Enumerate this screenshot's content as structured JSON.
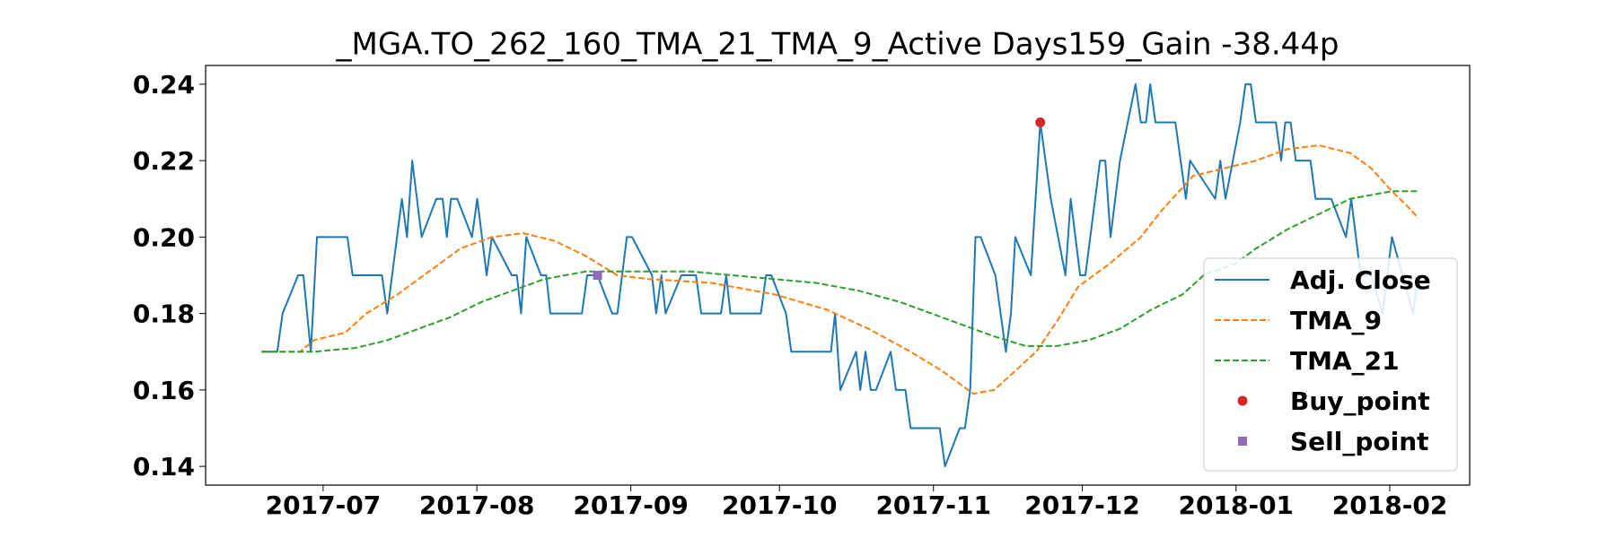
{
  "chart_data": {
    "type": "line",
    "title": "_MGA.TO_262_160_TMA_21_TMA_9_Active Days159_Gain -38.44p",
    "xlim": [
      2017.431,
      2018.129
    ],
    "xticks": [
      {
        "value": 2017.4959,
        "label": "2017-07"
      },
      {
        "value": 2017.5808,
        "label": "2017-08"
      },
      {
        "value": 2017.6658,
        "label": "2017-09"
      },
      {
        "value": 2017.7479,
        "label": "2017-10"
      },
      {
        "value": 2017.8329,
        "label": "2017-11"
      },
      {
        "value": 2017.9151,
        "label": "2017-12"
      },
      {
        "value": 2018.0,
        "label": "2018-01"
      },
      {
        "value": 2018.0849,
        "label": "2018-02"
      }
    ],
    "ylim": [
      0.1351,
      0.2449
    ],
    "yticks": [
      0.14,
      0.16,
      0.18,
      {
        "value": 0.2,
        "label": "0.20"
      },
      0.22,
      0.24
    ],
    "legend": "lower right",
    "series": [
      {
        "name": "Adj. Close",
        "type": "line",
        "color": "#1f77b4",
        "dash": false,
        "x": [
          2017.4619,
          2017.4706,
          2017.4735,
          2017.4821,
          2017.485,
          2017.4891,
          2017.4925,
          2017.5093,
          2017.5122,
          2017.5284,
          2017.5313,
          2017.5394,
          2017.5422,
          2017.5451,
          2017.5503,
          2017.5584,
          2017.5619,
          2017.5642,
          2017.5665,
          2017.57,
          2017.5781,
          2017.581,
          2017.5862,
          2017.5891,
          2017.6,
          2017.6029,
          2017.6052,
          2017.6081,
          2017.6162,
          2017.6191,
          2017.6214,
          2017.6388,
          2017.6417,
          2017.6474,
          2017.6555,
          2017.6584,
          2017.6636,
          2017.6665,
          2017.6775,
          2017.6798,
          2017.6827,
          2017.685,
          2017.6937,
          2017.7018,
          2017.7047,
          2017.7156,
          2017.7185,
          2017.7208,
          2017.7376,
          2017.7405,
          2017.7434,
          2017.7515,
          2017.7544,
          2017.7763,
          2017.7786,
          2017.7815,
          2017.7902,
          2017.7925,
          2017.7954,
          2017.7983,
          2017.8012,
          2017.8093,
          2017.8122,
          2017.8174,
          2017.8203,
          2017.8364,
          2017.8393,
          2017.8474,
          2017.8503,
          2017.8532,
          2017.8561,
          2017.859,
          2017.8671,
          2017.8729,
          2017.8757,
          2017.8781,
          2017.8867,
          2017.8919,
          2017.8977,
          2017.9058,
          2017.9087,
          2017.9139,
          2017.9168,
          2017.9249,
          2017.9278,
          2017.9307,
          2017.9359,
          2017.9445,
          2017.9474,
          2017.9503,
          2017.9526,
          2017.9555,
          2017.9665,
          2017.9723,
          2017.9746,
          2017.9885,
          2017.9913,
          2017.9942,
          2018.0023,
          2018.0052,
          2018.0081,
          2018.011,
          2018.022,
          2018.0249,
          2018.0272,
          2018.0301,
          2018.033,
          2018.0411,
          2018.0439,
          2018.0526,
          2018.0607,
          2018.0636,
          2018.0688,
          2018.0746,
          2018.0809,
          2018.0861,
          2018.0919,
          2018.0977,
          2018.1006
        ],
        "values": [
          0.17,
          0.17,
          0.18,
          0.19,
          0.19,
          0.17,
          0.2,
          0.2,
          0.19,
          0.19,
          0.18,
          0.21,
          0.2,
          0.22,
          0.2,
          0.21,
          0.21,
          0.2,
          0.21,
          0.21,
          0.2,
          0.21,
          0.19,
          0.2,
          0.19,
          0.19,
          0.18,
          0.2,
          0.19,
          0.19,
          0.18,
          0.18,
          0.19,
          0.19,
          0.18,
          0.18,
          0.2,
          0.2,
          0.19,
          0.18,
          0.19,
          0.18,
          0.19,
          0.19,
          0.18,
          0.18,
          0.19,
          0.18,
          0.18,
          0.19,
          0.19,
          0.18,
          0.17,
          0.17,
          0.18,
          0.16,
          0.17,
          0.16,
          0.17,
          0.16,
          0.16,
          0.17,
          0.16,
          0.16,
          0.15,
          0.15,
          0.14,
          0.15,
          0.15,
          0.16,
          0.2,
          0.2,
          0.19,
          0.17,
          0.18,
          0.2,
          0.19,
          0.23,
          0.21,
          0.19,
          0.21,
          0.19,
          0.19,
          0.22,
          0.22,
          0.2,
          0.22,
          0.24,
          0.23,
          0.23,
          0.24,
          0.23,
          0.23,
          0.21,
          0.22,
          0.21,
          0.22,
          0.21,
          0.23,
          0.24,
          0.24,
          0.23,
          0.23,
          0.22,
          0.23,
          0.23,
          0.22,
          0.22,
          0.21,
          0.21,
          0.2,
          0.21,
          0.19,
          0.19,
          0.18,
          0.2,
          0.19,
          0.18,
          0.19
        ]
      },
      {
        "name": "TMA_9",
        "type": "line",
        "color": "#ff7f0e",
        "dash": true,
        "x": [
          2017.4619,
          2017.4832,
          2017.4908,
          2017.5081,
          2017.5197,
          2017.537,
          2017.5544,
          2017.5717,
          2017.5891,
          2017.6064,
          2017.6237,
          2017.6411,
          2017.6584,
          2017.6758,
          2017.7104,
          2017.7451,
          2017.774,
          2017.7971,
          2017.8203,
          2017.8376,
          2017.8549,
          2017.8665,
          2017.8781,
          2017.8896,
          2017.9012,
          2017.9128,
          2017.9301,
          2017.9474,
          2017.959,
          2017.9763,
          2017.9936,
          2018.011,
          2018.0283,
          2018.0457,
          2018.063,
          2018.0746,
          2018.0861,
          2018.0948,
          2018.1006
        ],
        "values": [
          0.17,
          0.17,
          0.173,
          0.175,
          0.18,
          0.185,
          0.191,
          0.197,
          0.2,
          0.201,
          0.199,
          0.195,
          0.19,
          0.189,
          0.188,
          0.185,
          0.181,
          0.176,
          0.17,
          0.165,
          0.159,
          0.16,
          0.165,
          0.17,
          0.178,
          0.187,
          0.193,
          0.2,
          0.207,
          0.216,
          0.218,
          0.22,
          0.223,
          0.224,
          0.222,
          0.218,
          0.212,
          0.208,
          0.205
        ]
      },
      {
        "name": "TMA_21",
        "type": "line",
        "color": "#2ca02c",
        "dash": true,
        "x": [
          2017.4619,
          2017.4908,
          2017.5139,
          2017.5313,
          2017.5486,
          2017.5659,
          2017.5833,
          2017.6006,
          2017.618,
          2017.6411,
          2017.6642,
          2017.6989,
          2017.722,
          2017.7451,
          2017.7682,
          2017.7913,
          2017.8145,
          2017.8318,
          2017.8491,
          2017.8665,
          2017.8838,
          2017.9012,
          2017.9185,
          2017.9359,
          2017.9532,
          2017.9705,
          2017.9821,
          2017.9994,
          2018.011,
          2018.0283,
          2018.0457,
          2018.063,
          2018.0746,
          2018.0861,
          2018.1006
        ],
        "values": [
          0.17,
          0.17,
          0.171,
          0.173,
          0.176,
          0.179,
          0.183,
          0.186,
          0.189,
          0.191,
          0.191,
          0.191,
          0.19,
          0.189,
          0.188,
          0.186,
          0.183,
          0.18,
          0.177,
          0.174,
          0.1715,
          0.1715,
          0.173,
          0.176,
          0.181,
          0.185,
          0.19,
          0.193,
          0.197,
          0.202,
          0.206,
          0.21,
          0.211,
          0.212,
          0.212
        ]
      },
      {
        "name": "Buy_point",
        "type": "scatter",
        "marker": "circle",
        "color": "#d62728",
        "x": [
          2017.8919
        ],
        "values": [
          0.23
        ]
      },
      {
        "name": "Sell_point",
        "type": "scatter",
        "marker": "square",
        "color": "#9467bd",
        "x": [
          2017.6474
        ],
        "values": [
          0.19
        ]
      }
    ]
  }
}
